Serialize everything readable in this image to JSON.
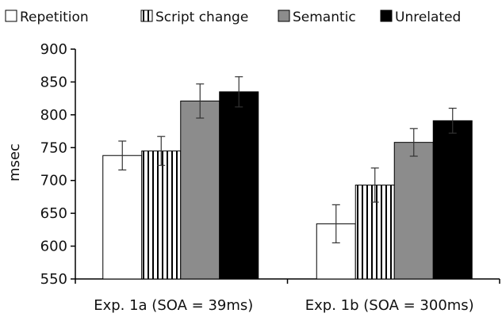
{
  "chart_data": {
    "type": "bar",
    "title": "",
    "xlabel": "",
    "ylabel": "msec",
    "ylim": [
      550,
      900
    ],
    "yticks": [
      550,
      600,
      650,
      700,
      750,
      800,
      850,
      900
    ],
    "grid": false,
    "legend_position": "top",
    "categories": [
      "Exp. 1a (SOA = 39ms)",
      "Exp. 1b (SOA = 300ms)"
    ],
    "series": [
      {
        "name": "Repetition",
        "fill": "#ffffff",
        "pattern": "none",
        "values": [
          738,
          634
        ],
        "errors": [
          22,
          29
        ]
      },
      {
        "name": "Script change",
        "fill": "#ffffff",
        "pattern": "vertical-stripes",
        "values": [
          745,
          693
        ],
        "errors": [
          22,
          26
        ]
      },
      {
        "name": "Semantic",
        "fill": "#8c8c8c",
        "pattern": "none",
        "values": [
          821,
          758
        ],
        "errors": [
          26,
          21
        ]
      },
      {
        "name": "Unrelated",
        "fill": "#000000",
        "pattern": "none",
        "values": [
          835,
          791
        ],
        "errors": [
          23,
          19
        ]
      }
    ]
  }
}
